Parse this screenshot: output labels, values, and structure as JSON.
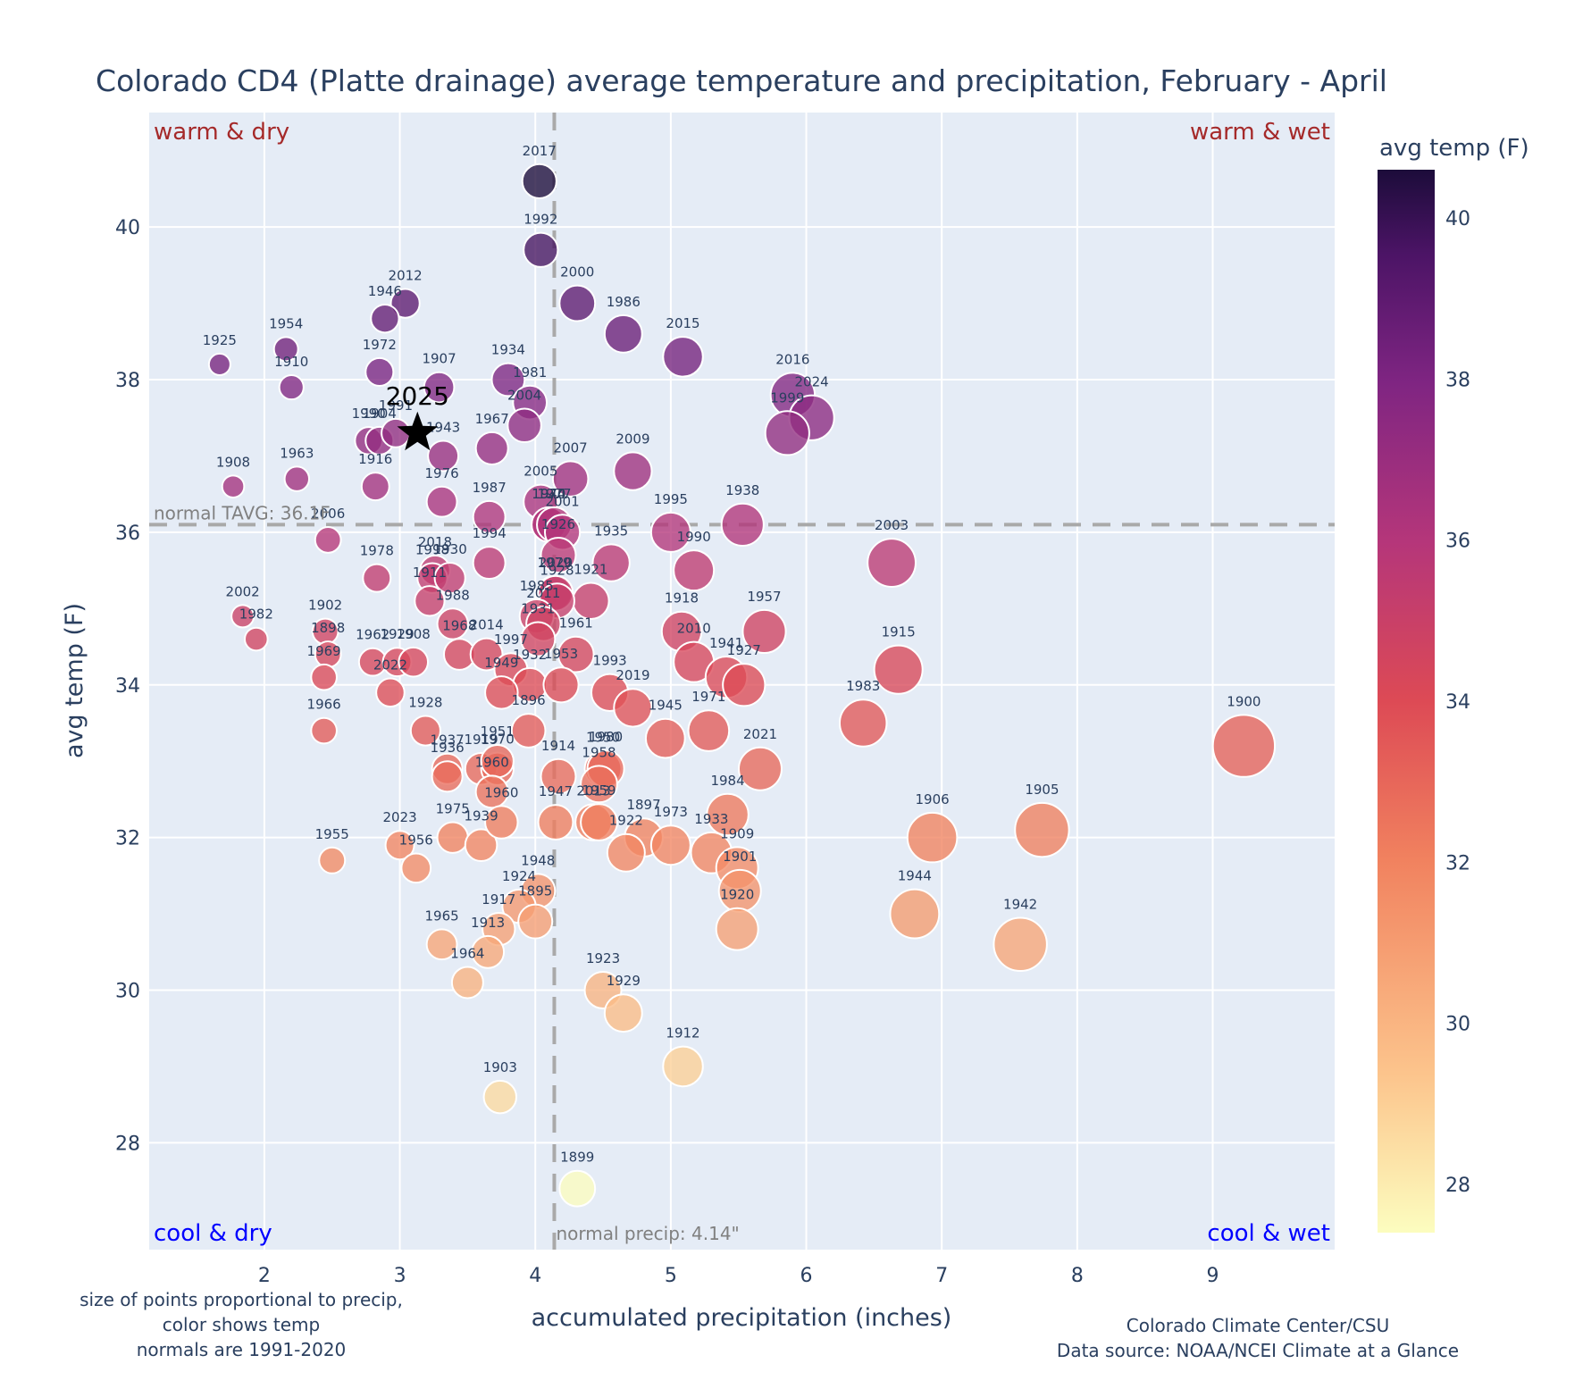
{
  "chart_data": {
    "type": "scatter",
    "title": "Colorado CD4 (Platte drainage) average temperature and precipitation, February - April",
    "xlabel": "accumulated precipitation (inches)",
    "ylabel": "avg temp (F)",
    "xlim": [
      1.15,
      9.9
    ],
    "ylim": [
      26.6,
      41.5
    ],
    "xticks": [
      2,
      3,
      4,
      5,
      6,
      7,
      8,
      9
    ],
    "yticks": [
      28,
      30,
      32,
      34,
      36,
      38,
      40
    ],
    "grid": true,
    "colorbar": {
      "title": "avg temp (F)",
      "range": [
        27.4,
        40.6
      ],
      "ticks": [
        28,
        30,
        32,
        34,
        36,
        38,
        40
      ],
      "colorscale": "magma-like (pale yellow to dark purple)"
    },
    "normals": {
      "precip": 4.14,
      "tavg": 36.1,
      "precip_label": "normal precip: 4.14\"",
      "tavg_label": "normal TAVG: 36.1F"
    },
    "quadrants": {
      "top_left": "warm & dry",
      "top_right": "warm & wet",
      "bottom_left": "cool & dry",
      "bottom_right": "cool & wet"
    },
    "highlight": {
      "year": "2025",
      "precip": 3.13,
      "temp": 37.3
    },
    "points": [
      {
        "year": "2017",
        "precip": 4.03,
        "temp": 40.6
      },
      {
        "year": "1992",
        "precip": 4.04,
        "temp": 39.7
      },
      {
        "year": "2000",
        "precip": 4.31,
        "temp": 39.0
      },
      {
        "year": "1986",
        "precip": 4.65,
        "temp": 38.6
      },
      {
        "year": "2015",
        "precip": 5.09,
        "temp": 38.3
      },
      {
        "year": "2012",
        "precip": 3.04,
        "temp": 39.0
      },
      {
        "year": "1946",
        "precip": 2.89,
        "temp": 38.8
      },
      {
        "year": "1954",
        "precip": 2.16,
        "temp": 38.4
      },
      {
        "year": "1925",
        "precip": 1.67,
        "temp": 38.2
      },
      {
        "year": "1910",
        "precip": 2.2,
        "temp": 37.9
      },
      {
        "year": "1972",
        "precip": 2.85,
        "temp": 38.1
      },
      {
        "year": "1907",
        "precip": 3.29,
        "temp": 37.9
      },
      {
        "year": "1934",
        "precip": 3.8,
        "temp": 38.0
      },
      {
        "year": "1981",
        "precip": 3.96,
        "temp": 37.7
      },
      {
        "year": "2004",
        "precip": 3.92,
        "temp": 37.4
      },
      {
        "year": "2016",
        "precip": 5.9,
        "temp": 37.8
      },
      {
        "year": "2024",
        "precip": 6.04,
        "temp": 37.5
      },
      {
        "year": "1999",
        "precip": 5.86,
        "temp": 37.3
      },
      {
        "year": "1990",
        "precip": 2.77,
        "temp": 37.2
      },
      {
        "year": "1904",
        "precip": 2.85,
        "temp": 37.2
      },
      {
        "year": "1991",
        "precip": 2.97,
        "temp": 37.3
      },
      {
        "year": "1943",
        "precip": 3.32,
        "temp": 37.0
      },
      {
        "year": "1967",
        "precip": 3.68,
        "temp": 37.1
      },
      {
        "year": "2007",
        "precip": 4.26,
        "temp": 36.7
      },
      {
        "year": "2009",
        "precip": 4.72,
        "temp": 36.8
      },
      {
        "year": "1908",
        "precip": 1.77,
        "temp": 36.6
      },
      {
        "year": "1963",
        "precip": 2.24,
        "temp": 36.7
      },
      {
        "year": "1916",
        "precip": 2.82,
        "temp": 36.6
      },
      {
        "year": "1976",
        "precip": 3.31,
        "temp": 36.4
      },
      {
        "year": "1987",
        "precip": 3.66,
        "temp": 36.2
      },
      {
        "year": "2005",
        "precip": 4.04,
        "temp": 36.4
      },
      {
        "year": "1974",
        "precip": 4.1,
        "temp": 36.1
      },
      {
        "year": "1940",
        "precip": 4.1,
        "temp": 36.1
      },
      {
        "year": "1977",
        "precip": 4.14,
        "temp": 36.1
      },
      {
        "year": "2001",
        "precip": 4.2,
        "temp": 36.0
      },
      {
        "year": "1995",
        "precip": 5.0,
        "temp": 36.0
      },
      {
        "year": "1938",
        "precip": 5.53,
        "temp": 36.1
      },
      {
        "year": "2006",
        "precip": 2.47,
        "temp": 35.9
      },
      {
        "year": "2003",
        "precip": 6.63,
        "temp": 35.6
      },
      {
        "year": "1935",
        "precip": 4.56,
        "temp": 35.6
      },
      {
        "year": "1990b",
        "label": "1990",
        "precip": 5.17,
        "temp": 35.5
      },
      {
        "year": "1994",
        "precip": 3.66,
        "temp": 35.6
      },
      {
        "year": "1926",
        "precip": 4.17,
        "temp": 35.7
      },
      {
        "year": "1979",
        "precip": 4.14,
        "temp": 35.2
      },
      {
        "year": "1921",
        "precip": 4.41,
        "temp": 35.1
      },
      {
        "year": "1978",
        "precip": 2.83,
        "temp": 35.4
      },
      {
        "year": "2018",
        "precip": 3.26,
        "temp": 35.5
      },
      {
        "year": "1998",
        "precip": 3.24,
        "temp": 35.4
      },
      {
        "year": "1930",
        "precip": 3.37,
        "temp": 35.4
      },
      {
        "year": "1911",
        "precip": 3.22,
        "temp": 35.1
      },
      {
        "year": "1988",
        "precip": 3.39,
        "temp": 34.8
      },
      {
        "year": "2020",
        "precip": 4.15,
        "temp": 35.2
      },
      {
        "year": "1928b",
        "label": "1928",
        "precip": 4.16,
        "temp": 35.1
      },
      {
        "year": "1985",
        "precip": 4.01,
        "temp": 34.9
      },
      {
        "year": "2011",
        "precip": 4.06,
        "temp": 34.8
      },
      {
        "year": "1931",
        "precip": 4.02,
        "temp": 34.6
      },
      {
        "year": "1961",
        "precip": 4.3,
        "temp": 34.4
      },
      {
        "year": "1918",
        "precip": 5.08,
        "temp": 34.7
      },
      {
        "year": "1957",
        "precip": 5.69,
        "temp": 34.7
      },
      {
        "year": "2010",
        "precip": 5.17,
        "temp": 34.3
      },
      {
        "year": "1941",
        "precip": 5.41,
        "temp": 34.1
      },
      {
        "year": "1927",
        "precip": 5.54,
        "temp": 34.0
      },
      {
        "year": "1915",
        "precip": 6.68,
        "temp": 34.2
      },
      {
        "year": "2002",
        "precip": 1.84,
        "temp": 34.9
      },
      {
        "year": "1982",
        "precip": 1.94,
        "temp": 34.6
      },
      {
        "year": "1902",
        "precip": 2.45,
        "temp": 34.7
      },
      {
        "year": "1898",
        "precip": 2.47,
        "temp": 34.4
      },
      {
        "year": "1969",
        "precip": 2.44,
        "temp": 34.1
      },
      {
        "year": "1962",
        "precip": 2.8,
        "temp": 34.3
      },
      {
        "year": "1929b",
        "label": "1929",
        "precip": 2.98,
        "temp": 34.3
      },
      {
        "year": "1908b",
        "label": "1908",
        "precip": 3.1,
        "temp": 34.3
      },
      {
        "year": "2022",
        "precip": 2.93,
        "temp": 33.9
      },
      {
        "year": "1968",
        "precip": 3.44,
        "temp": 34.4
      },
      {
        "year": "2014",
        "precip": 3.64,
        "temp": 34.4
      },
      {
        "year": "1997",
        "precip": 3.82,
        "temp": 34.2
      },
      {
        "year": "1932",
        "precip": 3.96,
        "temp": 34.0
      },
      {
        "year": "1953",
        "precip": 4.19,
        "temp": 34.0
      },
      {
        "year": "1949",
        "precip": 3.75,
        "temp": 33.9
      },
      {
        "year": "1993",
        "precip": 4.55,
        "temp": 33.9
      },
      {
        "year": "2019",
        "precip": 4.72,
        "temp": 33.7
      },
      {
        "year": "1896",
        "precip": 3.95,
        "temp": 33.4
      },
      {
        "year": "1945",
        "precip": 4.96,
        "temp": 33.3
      },
      {
        "year": "1971",
        "precip": 5.28,
        "temp": 33.4
      },
      {
        "year": "1983",
        "precip": 6.42,
        "temp": 33.5
      },
      {
        "year": "1900",
        "precip": 9.23,
        "temp": 33.2
      },
      {
        "year": "1966",
        "precip": 2.44,
        "temp": 33.4
      },
      {
        "year": "1928",
        "precip": 3.19,
        "temp": 33.4
      },
      {
        "year": "1937",
        "precip": 3.35,
        "temp": 32.9
      },
      {
        "year": "1936",
        "precip": 3.35,
        "temp": 32.8
      },
      {
        "year": "1919",
        "precip": 3.6,
        "temp": 32.9
      },
      {
        "year": "1970",
        "precip": 3.72,
        "temp": 32.9
      },
      {
        "year": "1951",
        "precip": 3.72,
        "temp": 33.0
      },
      {
        "year": "1914",
        "precip": 4.17,
        "temp": 32.8
      },
      {
        "year": "1950",
        "precip": 4.5,
        "temp": 32.9
      },
      {
        "year": "1980",
        "precip": 4.52,
        "temp": 32.9
      },
      {
        "year": "1958",
        "precip": 4.47,
        "temp": 32.7
      },
      {
        "year": "2021",
        "precip": 5.66,
        "temp": 32.9
      },
      {
        "year": "1960",
        "precip": 3.68,
        "temp": 32.6
      },
      {
        "year": "1947",
        "precip": 4.15,
        "temp": 32.2
      },
      {
        "year": "2013",
        "precip": 4.43,
        "temp": 32.2
      },
      {
        "year": "1959",
        "precip": 4.47,
        "temp": 32.2
      },
      {
        "year": "1984",
        "precip": 5.42,
        "temp": 32.3
      },
      {
        "year": "1975",
        "precip": 3.39,
        "temp": 32.0
      },
      {
        "year": "1939",
        "precip": 3.6,
        "temp": 31.9
      },
      {
        "year": "1960b",
        "label": "1960",
        "precip": 3.75,
        "temp": 32.2
      },
      {
        "year": "1897",
        "precip": 4.8,
        "temp": 32.0
      },
      {
        "year": "1922",
        "precip": 4.67,
        "temp": 31.8
      },
      {
        "year": "1973",
        "precip": 5.0,
        "temp": 31.9
      },
      {
        "year": "1933",
        "precip": 5.3,
        "temp": 31.8
      },
      {
        "year": "1909",
        "precip": 5.49,
        "temp": 31.6
      },
      {
        "year": "1901",
        "precip": 5.51,
        "temp": 31.3
      },
      {
        "year": "1906",
        "precip": 6.93,
        "temp": 32.0
      },
      {
        "year": "1905",
        "precip": 7.74,
        "temp": 32.1
      },
      {
        "year": "1955",
        "precip": 2.5,
        "temp": 31.7
      },
      {
        "year": "2023",
        "precip": 3.0,
        "temp": 31.9
      },
      {
        "year": "1956",
        "precip": 3.12,
        "temp": 31.6
      },
      {
        "year": "1948",
        "precip": 4.02,
        "temp": 31.3
      },
      {
        "year": "1924",
        "precip": 3.88,
        "temp": 31.1
      },
      {
        "year": "1895",
        "precip": 4.0,
        "temp": 30.9
      },
      {
        "year": "1917",
        "precip": 3.73,
        "temp": 30.8
      },
      {
        "year": "1920",
        "precip": 5.49,
        "temp": 30.8
      },
      {
        "year": "1944",
        "precip": 6.8,
        "temp": 31.0
      },
      {
        "year": "1942",
        "precip": 7.58,
        "temp": 30.6
      },
      {
        "year": "1965",
        "precip": 3.31,
        "temp": 30.6
      },
      {
        "year": "1913",
        "precip": 3.65,
        "temp": 30.5
      },
      {
        "year": "1964",
        "precip": 3.5,
        "temp": 30.1
      },
      {
        "year": "1923",
        "precip": 4.5,
        "temp": 30.0
      },
      {
        "year": "1929",
        "precip": 4.65,
        "temp": 29.7
      },
      {
        "year": "1912",
        "precip": 5.09,
        "temp": 29.0
      },
      {
        "year": "1903",
        "precip": 3.74,
        "temp": 28.6
      },
      {
        "year": "1899",
        "precip": 4.31,
        "temp": 27.4
      }
    ]
  },
  "footnotes": {
    "left": [
      "size of points proportional to precip,",
      "color shows temp",
      "normals are 1991-2020"
    ],
    "right": [
      "Colorado Climate Center/CSU",
      "Data source: NOAA/NCEI Climate at a Glance"
    ]
  }
}
